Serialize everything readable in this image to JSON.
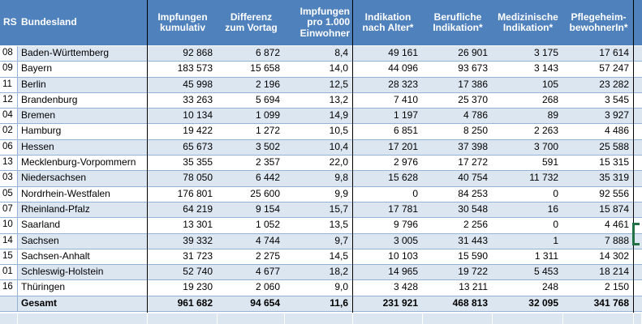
{
  "colors": {
    "header_bg": "#4f81bd",
    "header_text": "#ffffff",
    "band_light": "#dce6f1",
    "band_white": "#ffffff",
    "grid_border": "#95b3d7",
    "section_separator": "#000000",
    "text": "#000000",
    "selection_green": "#217346"
  },
  "selection": {
    "selected_row": "Saarland"
  },
  "table": {
    "columns": [
      {
        "key": "rs",
        "label": "RS",
        "align": "left"
      },
      {
        "key": "bundesland",
        "label": "Bundesland",
        "align": "left"
      },
      {
        "key": "impfungen-kumulativ",
        "label": "Impfungen\nkumulativ",
        "align": "center"
      },
      {
        "key": "differenz-zum-vortag",
        "label": "Differenz\nzum Vortag",
        "align": "center"
      },
      {
        "key": "impfungen-pro-1000-einwohner",
        "label": "Impfungen\npro 1.000\nEinwohner",
        "align": "right"
      },
      {
        "key": "indikation-nach-alter",
        "label": "Indikation\nnach Alter*",
        "align": "center"
      },
      {
        "key": "berufliche-indikation",
        "label": "Berufliche\nIndikation*",
        "align": "center"
      },
      {
        "key": "medizinische-indikation",
        "label": "Medizinische\nIndikation*",
        "align": "center"
      },
      {
        "key": "pflegeheim-bewohnerin",
        "label": "Pflegeheim-\nbewohnerIn*",
        "align": "center"
      },
      {
        "key": "gutter",
        "label": "",
        "align": "left"
      }
    ],
    "rows": [
      {
        "rs": "08",
        "bundesland": "Baden-Württemberg",
        "values": [
          "92 868",
          "6 872",
          "8,4",
          "49 161",
          "26 901",
          "3 175",
          "17 614"
        ]
      },
      {
        "rs": "09",
        "bundesland": "Bayern",
        "values": [
          "183 573",
          "15 658",
          "14,0",
          "44 096",
          "93 673",
          "3 143",
          "57 247"
        ]
      },
      {
        "rs": "11",
        "bundesland": "Berlin",
        "values": [
          "45 998",
          "2 196",
          "12,5",
          "28 323",
          "17 386",
          "105",
          "23 282"
        ]
      },
      {
        "rs": "12",
        "bundesland": "Brandenburg",
        "values": [
          "33 263",
          "5 694",
          "13,2",
          "7 410",
          "25 370",
          "268",
          "3 545"
        ]
      },
      {
        "rs": "04",
        "bundesland": "Bremen",
        "values": [
          "10 134",
          "1 099",
          "14,9",
          "1 197",
          "4 786",
          "89",
          "3 927"
        ]
      },
      {
        "rs": "02",
        "bundesland": "Hamburg",
        "values": [
          "19 422",
          "1 272",
          "10,5",
          "6 851",
          "8 250",
          "2 263",
          "4 486"
        ]
      },
      {
        "rs": "06",
        "bundesland": "Hessen",
        "values": [
          "65 673",
          "3 502",
          "10,4",
          "17 201",
          "37 398",
          "3 700",
          "25 588"
        ]
      },
      {
        "rs": "13",
        "bundesland": "Mecklenburg-Vorpommern",
        "values": [
          "35 355",
          "2 357",
          "22,0",
          "2 976",
          "17 272",
          "591",
          "15 315"
        ]
      },
      {
        "rs": "03",
        "bundesland": "Niedersachsen",
        "values": [
          "78 050",
          "6 442",
          "9,8",
          "15 628",
          "40 754",
          "11 732",
          "35 319"
        ]
      },
      {
        "rs": "05",
        "bundesland": "Nordrhein-Westfalen",
        "values": [
          "176 801",
          "25 600",
          "9,9",
          "0",
          "84 253",
          "0",
          "92 556"
        ]
      },
      {
        "rs": "07",
        "bundesland": "Rheinland-Pfalz",
        "values": [
          "64 219",
          "9 154",
          "15,7",
          "17 781",
          "30 548",
          "16",
          "15 874"
        ]
      },
      {
        "rs": "10",
        "bundesland": "Saarland",
        "values": [
          "13 301",
          "1 052",
          "13,5",
          "9 796",
          "2 256",
          "0",
          "4 461"
        ]
      },
      {
        "rs": "14",
        "bundesland": "Sachsen",
        "values": [
          "39 332",
          "4 744",
          "9,7",
          "3 005",
          "31 443",
          "1",
          "7 888"
        ]
      },
      {
        "rs": "15",
        "bundesland": "Sachsen-Anhalt",
        "values": [
          "31 723",
          "2 275",
          "14,5",
          "10 103",
          "15 590",
          "1 311",
          "14 302"
        ]
      },
      {
        "rs": "01",
        "bundesland": "Schleswig-Holstein",
        "values": [
          "52 740",
          "4 677",
          "18,2",
          "14 965",
          "19 722",
          "5 453",
          "18 214"
        ]
      },
      {
        "rs": "16",
        "bundesland": "Thüringen",
        "values": [
          "19 230",
          "2 060",
          "9,0",
          "3 428",
          "13 211",
          "248",
          "2 150"
        ]
      }
    ],
    "total_row": {
      "rs": "",
      "bundesland": "Gesamt",
      "values": [
        "961 682",
        "94 654",
        "11,6",
        "231 921",
        "468 813",
        "32 095",
        "341 768"
      ]
    }
  }
}
